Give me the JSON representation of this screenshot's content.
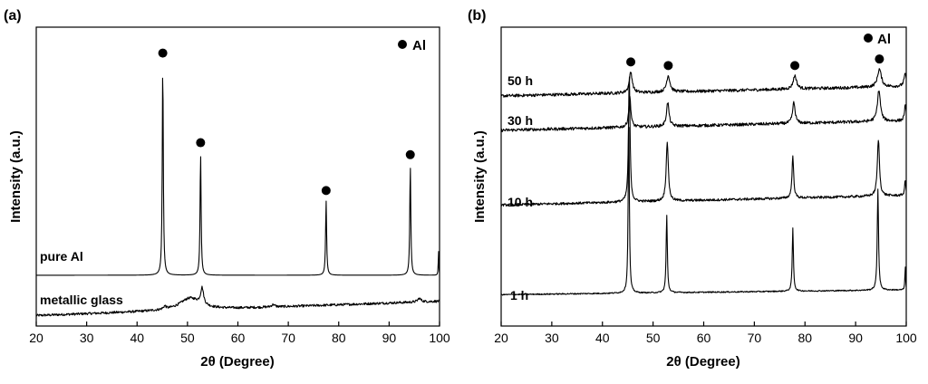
{
  "chart_data": [
    {
      "type": "line",
      "panel_label": "(a)",
      "xlabel": "2θ (Degree)",
      "ylabel": "Intensity (a.u.)",
      "xlim": [
        20,
        100
      ],
      "ylim": [
        0,
        1
      ],
      "x_ticks": [
        20,
        30,
        40,
        50,
        60,
        70,
        80,
        90,
        100
      ],
      "legend": {
        "label": "Al",
        "position": "top-right",
        "marker": "filled-circle"
      },
      "marker_positions": [
        45.1,
        52.6,
        77.5,
        94.2
      ],
      "series": [
        {
          "name": "pure Al",
          "baseline": 0.17,
          "peaks": [
            {
              "x": 45.1,
              "height": 0.71,
              "width": 0.12
            },
            {
              "x": 52.6,
              "height": 0.41,
              "width": 0.12
            },
            {
              "x": 77.5,
              "height": 0.25,
              "width": 0.12
            },
            {
              "x": 94.2,
              "height": 0.37,
              "width": 0.12
            },
            {
              "x": 99.8,
              "height": 0.09,
              "width": 0.06
            }
          ],
          "noise": 0.0,
          "marker_offset": 0.045
        },
        {
          "name": "metallic glass",
          "baseline": 0.035,
          "slope": 0.0006,
          "peaks": [
            {
              "x": 52.9,
              "height": 0.055,
              "width": 0.35
            },
            {
              "x": 50.5,
              "height": 0.04,
              "width": 2.5
            },
            {
              "x": 45.5,
              "height": 0.01,
              "width": 0.3
            },
            {
              "x": 67.0,
              "height": 0.008,
              "width": 0.4
            },
            {
              "x": 96.0,
              "height": 0.012,
              "width": 0.4
            }
          ],
          "noise": 0.004
        }
      ]
    },
    {
      "type": "line",
      "panel_label": "(b)",
      "xlabel": "2θ (Degree)",
      "ylabel": "Intensity (a.u.)",
      "xlim": [
        20,
        100
      ],
      "ylim": [
        0,
        1
      ],
      "x_ticks": [
        20,
        30,
        40,
        50,
        60,
        70,
        80,
        90,
        100
      ],
      "legend": {
        "label": "Al",
        "position": "top-right",
        "marker": "filled-circle"
      },
      "series": [
        {
          "name": "50 h",
          "baseline": 0.77,
          "slope": 0.0004,
          "peaks": [
            {
              "x": 45.6,
              "height": 0.07,
              "width": 0.35
            },
            {
              "x": 53.0,
              "height": 0.055,
              "width": 0.4
            },
            {
              "x": 78.0,
              "height": 0.045,
              "width": 0.4
            },
            {
              "x": 94.7,
              "height": 0.06,
              "width": 0.45
            },
            {
              "x": 99.8,
              "height": 0.04,
              "width": 0.3
            }
          ],
          "noise": 0.005,
          "markers": true
        },
        {
          "name": "30 h",
          "baseline": 0.655,
          "slope": 0.0004,
          "peaks": [
            {
              "x": 45.4,
              "height": 0.105,
              "width": 0.25
            },
            {
              "x": 52.9,
              "height": 0.08,
              "width": 0.3
            },
            {
              "x": 77.8,
              "height": 0.07,
              "width": 0.3
            },
            {
              "x": 94.6,
              "height": 0.105,
              "width": 0.35
            },
            {
              "x": 99.8,
              "height": 0.05,
              "width": 0.2
            }
          ],
          "noise": 0.005,
          "markers": false
        },
        {
          "name": "10 h",
          "baseline": 0.405,
          "slope": 0.0004,
          "peaks": [
            {
              "x": 45.3,
              "height": 0.43,
              "width": 0.18
            },
            {
              "x": 52.8,
              "height": 0.2,
              "width": 0.25
            },
            {
              "x": 77.6,
              "height": 0.14,
              "width": 0.2
            },
            {
              "x": 94.5,
              "height": 0.19,
              "width": 0.25
            },
            {
              "x": 99.8,
              "height": 0.05,
              "width": 0.15
            }
          ],
          "noise": 0.004,
          "markers": false
        },
        {
          "name": "1 h",
          "baseline": 0.105,
          "slope": 0.0002,
          "peaks": [
            {
              "x": 45.2,
              "height": 0.62,
              "width": 0.13
            },
            {
              "x": 52.7,
              "height": 0.26,
              "width": 0.14
            },
            {
              "x": 77.6,
              "height": 0.21,
              "width": 0.14
            },
            {
              "x": 94.4,
              "height": 0.34,
              "width": 0.15
            },
            {
              "x": 99.8,
              "height": 0.08,
              "width": 0.08
            }
          ],
          "noise": 0.002,
          "markers": false
        }
      ]
    }
  ]
}
